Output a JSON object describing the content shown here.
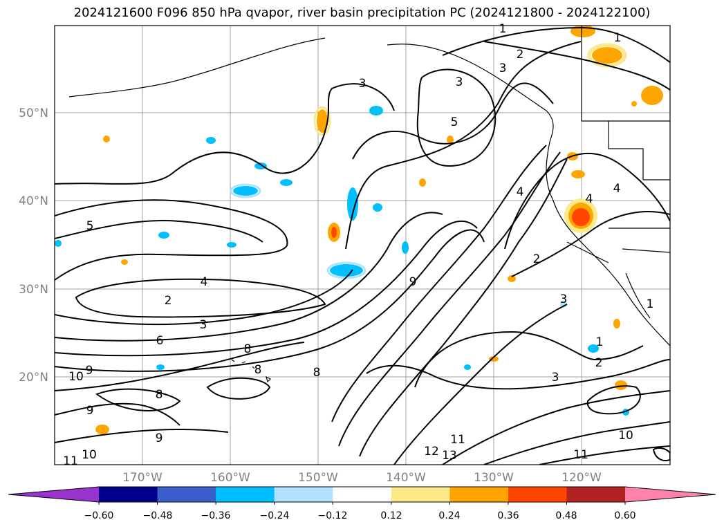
{
  "title": "2024121600 F096 850 hPa qvapor, river basin precipitation PC (2024121800 - 2024122100)",
  "map": {
    "lat_labels": [
      "50°N",
      "40°N",
      "30°N",
      "20°N"
    ],
    "lon_labels": [
      "170°W",
      "160°W",
      "150°W",
      "140°W",
      "130°W",
      "120°W"
    ],
    "colors": {
      "coast": "#000000",
      "grid": "#a0a0a0",
      "contour": "#000000"
    }
  },
  "contour_labels": [
    "1",
    "1",
    "2",
    "3",
    "3",
    "3",
    "5",
    "5",
    "4",
    "2",
    "3",
    "4",
    "4",
    "4",
    "2",
    "3",
    "6",
    "8",
    "9",
    "8",
    "8",
    "9",
    "10",
    "9",
    "8",
    "9",
    "11",
    "10",
    "12",
    "13",
    "11",
    "10",
    "11",
    "2",
    "3",
    "1",
    "1"
  ],
  "colorbar": {
    "colors": [
      "#9a32cd",
      "#00008b",
      "#3a5fcd",
      "#00bfff",
      "#b0e2ff",
      "#ffffff",
      "#fce98a",
      "#ffa500",
      "#ff4500",
      "#b22222",
      "#ff82ab"
    ],
    "ticks": [
      "−0.60",
      "−0.48",
      "−0.36",
      "−0.24",
      "−0.12",
      "0.12",
      "0.24",
      "0.36",
      "0.48",
      "0.60"
    ]
  }
}
